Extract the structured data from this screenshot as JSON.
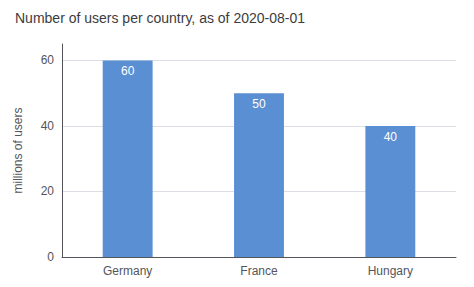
{
  "chart_data": {
    "type": "bar",
    "title": "Number of users per country, as of 2020-08-01",
    "categories": [
      "Germany",
      "France",
      "Hungary"
    ],
    "values": [
      60,
      50,
      40
    ],
    "color": "#5B8FD4",
    "ylabel": "millions of users",
    "ylim": [
      0,
      65
    ],
    "yticks": [
      0,
      20,
      40,
      60
    ],
    "grid": true,
    "data_labels": true
  }
}
